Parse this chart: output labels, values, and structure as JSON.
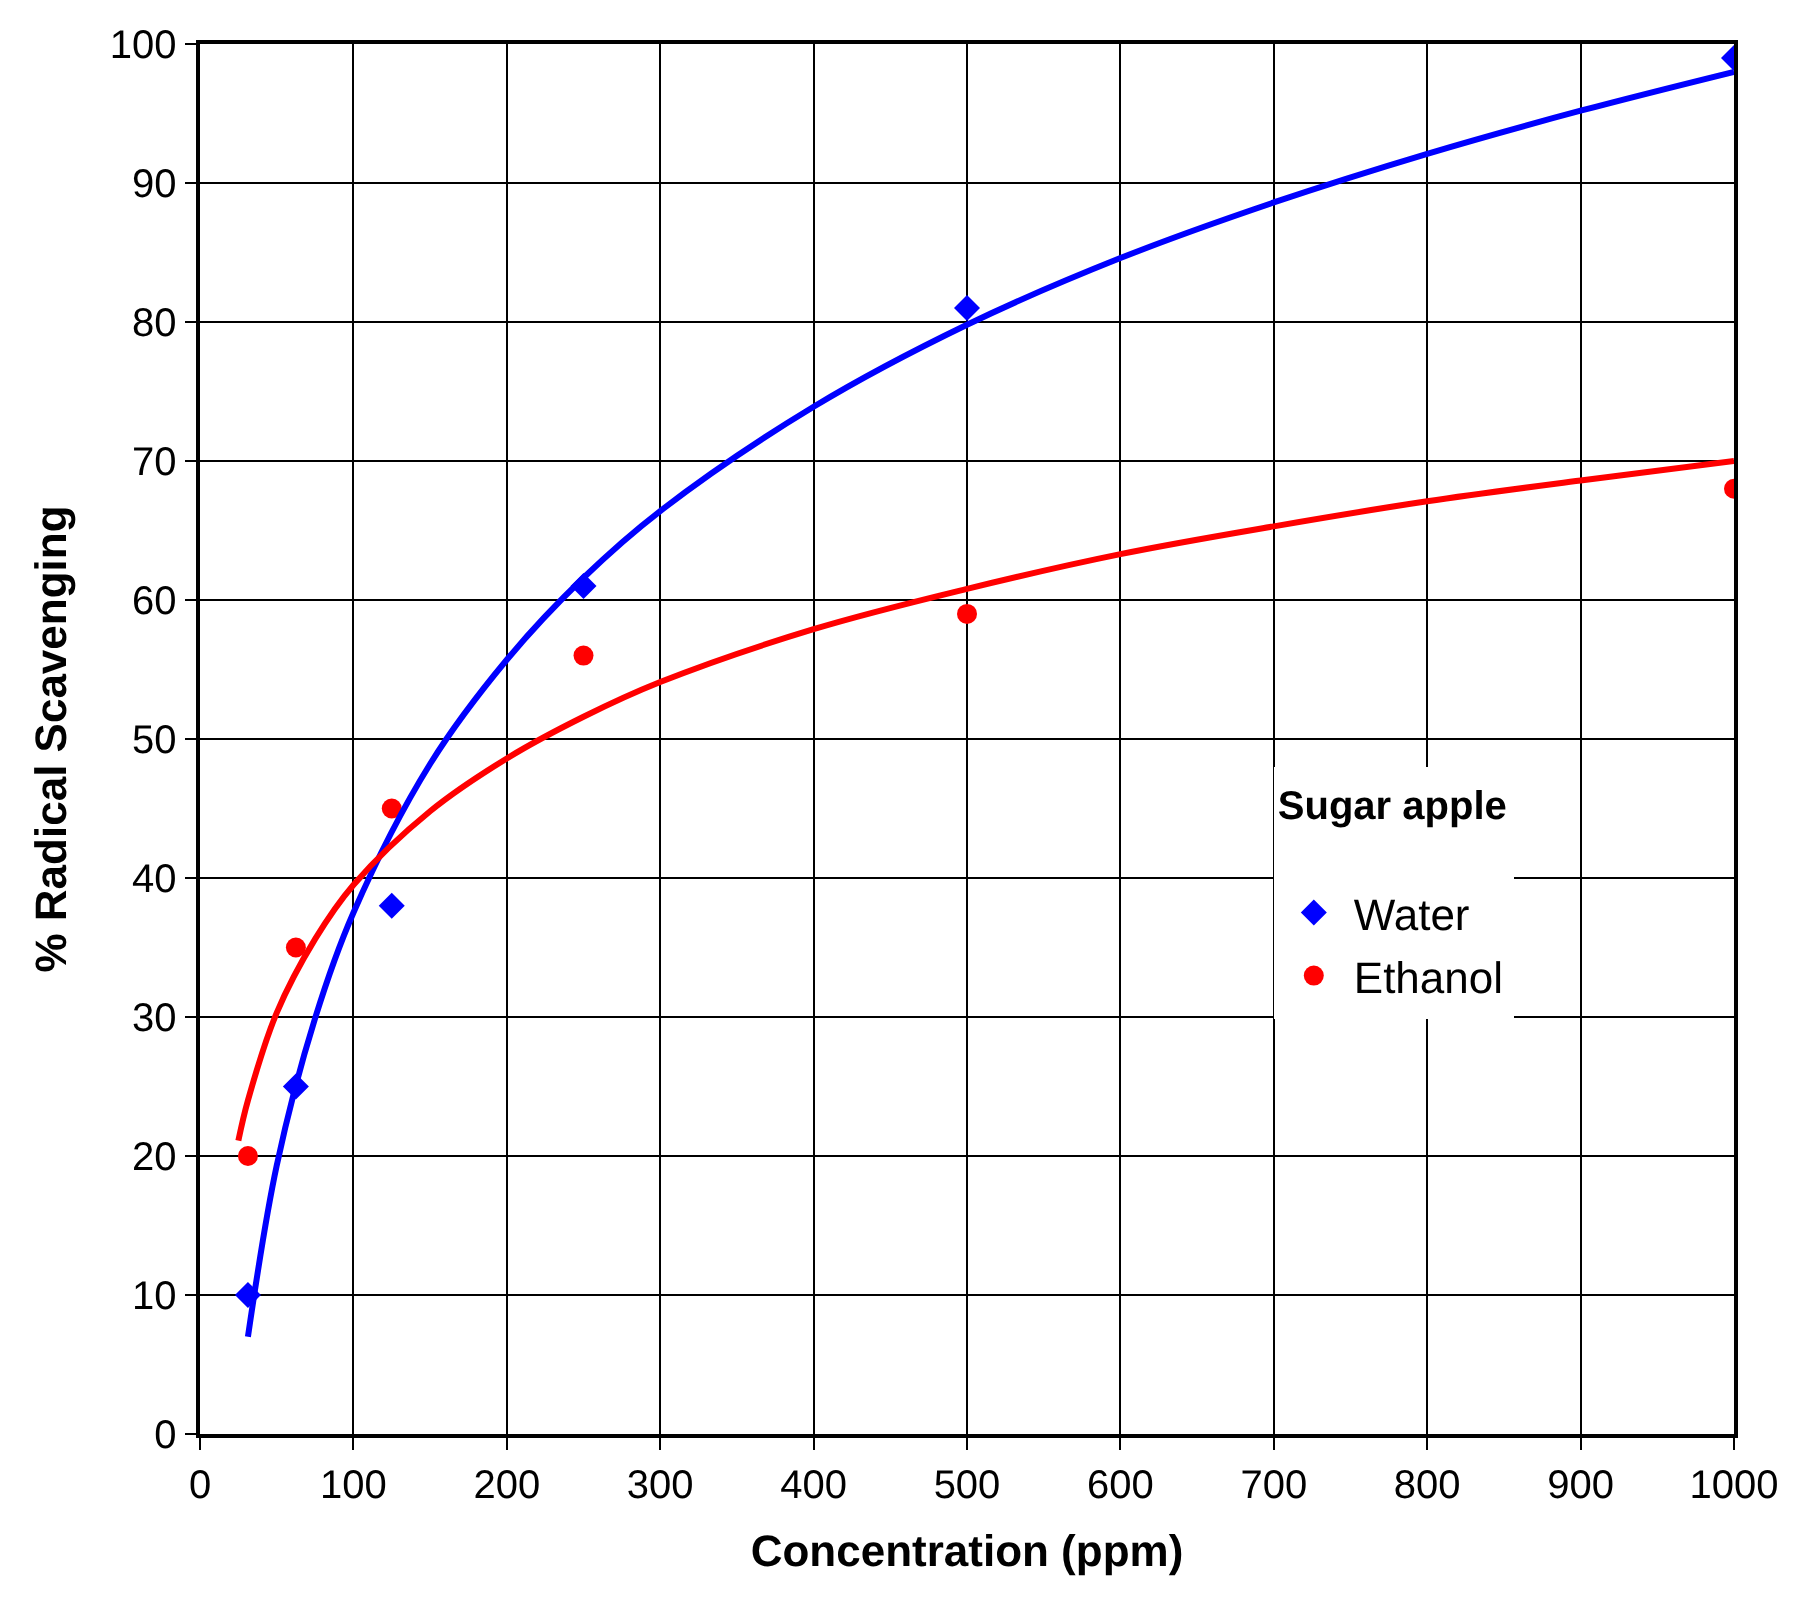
{
  "chart_data": {
    "type": "scatter",
    "xlabel": "Concentration (ppm)",
    "ylabel": "% Radical Scavenging",
    "legend_title": "Sugar apple",
    "legend": "right",
    "grid": true,
    "x": [
      31.25,
      62.5,
      125,
      250,
      500,
      1000
    ],
    "xlim": [
      0,
      1000
    ],
    "xticks": [
      0,
      100,
      200,
      300,
      400,
      500,
      600,
      700,
      800,
      900,
      1000
    ],
    "ylim": [
      0,
      100
    ],
    "yticks": [
      0,
      10,
      20,
      30,
      40,
      50,
      60,
      70,
      80,
      90,
      100
    ],
    "series": [
      {
        "name": "Water",
        "color": "#0000ff",
        "marker": "diamond",
        "values": [
          10,
          25,
          38,
          61,
          81,
          99
        ]
      },
      {
        "name": "Ethanol",
        "color": "#ff0000",
        "marker": "circle",
        "values": [
          20,
          35,
          45,
          56,
          59,
          68
        ]
      },
      {
        "type": "line",
        "color": "#0000ff",
        "x": [
          31.25,
          50,
          75,
          100,
          150,
          200,
          250,
          300,
          400,
          500,
          600,
          700,
          800,
          900,
          1000
        ],
        "values": [
          7,
          19.3,
          29.9,
          37.5,
          48.2,
          55.7,
          61.6,
          66.4,
          73.9,
          79.8,
          84.6,
          88.6,
          92.1,
          95.2,
          98
        ]
      },
      {
        "type": "line",
        "color": "#ff0000",
        "x": [
          25,
          31.25,
          50,
          75,
          100,
          150,
          200,
          250,
          300,
          400,
          500,
          600,
          700,
          800,
          900,
          1000
        ],
        "values": [
          21.1,
          24,
          30.3,
          35.6,
          39.5,
          44.8,
          48.6,
          51.6,
          54.1,
          57.9,
          60.8,
          63.3,
          65.3,
          67.1,
          68.6,
          70
        ]
      }
    ]
  }
}
